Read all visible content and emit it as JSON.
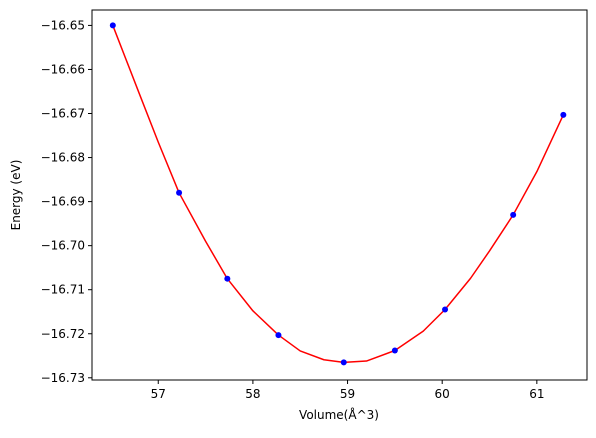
{
  "chart_data": {
    "type": "scatter",
    "title": "",
    "xlabel": "Volume(Å^3)",
    "ylabel": "Energy (eV)",
    "xlim": [
      56.3,
      61.53
    ],
    "ylim": [
      -16.7305,
      -16.6465
    ],
    "x_ticks": [
      57,
      58,
      59,
      60,
      61
    ],
    "y_ticks": [
      -16.65,
      -16.66,
      -16.67,
      -16.68,
      -16.69,
      -16.7,
      -16.71,
      -16.72,
      -16.73
    ],
    "x_tick_labels": [
      "57",
      "58",
      "59",
      "60",
      "61"
    ],
    "y_tick_labels": [
      "−16.65",
      "−16.66",
      "−16.67",
      "−16.68",
      "−16.69",
      "−16.70",
      "−16.71",
      "−16.72",
      "−16.73"
    ],
    "grid": false,
    "legend": "none",
    "series": [
      {
        "kind": "points",
        "color": "#0000ff",
        "x": [
          56.52,
          57.22,
          57.73,
          58.27,
          58.96,
          59.5,
          60.03,
          60.75,
          61.28
        ],
        "y": [
          -16.65,
          -16.688,
          -16.7075,
          -16.7203,
          -16.7265,
          -16.7238,
          -16.7145,
          -16.693,
          -16.6703
        ]
      },
      {
        "kind": "fit-curve",
        "color": "#ff0000",
        "x": [
          56.52,
          56.8,
          57.0,
          57.22,
          57.5,
          57.73,
          58.0,
          58.27,
          58.5,
          58.75,
          58.96,
          59.2,
          59.5,
          59.8,
          60.03,
          60.3,
          60.5,
          60.75,
          61.0,
          61.28
        ],
        "y": [
          -16.65,
          -16.6655,
          -16.6765,
          -16.688,
          -16.699,
          -16.7075,
          -16.7148,
          -16.7203,
          -16.7239,
          -16.7259,
          -16.7265,
          -16.7262,
          -16.7238,
          -16.7194,
          -16.7145,
          -16.7074,
          -16.7012,
          -16.693,
          -16.6832,
          -16.6703
        ]
      }
    ]
  }
}
